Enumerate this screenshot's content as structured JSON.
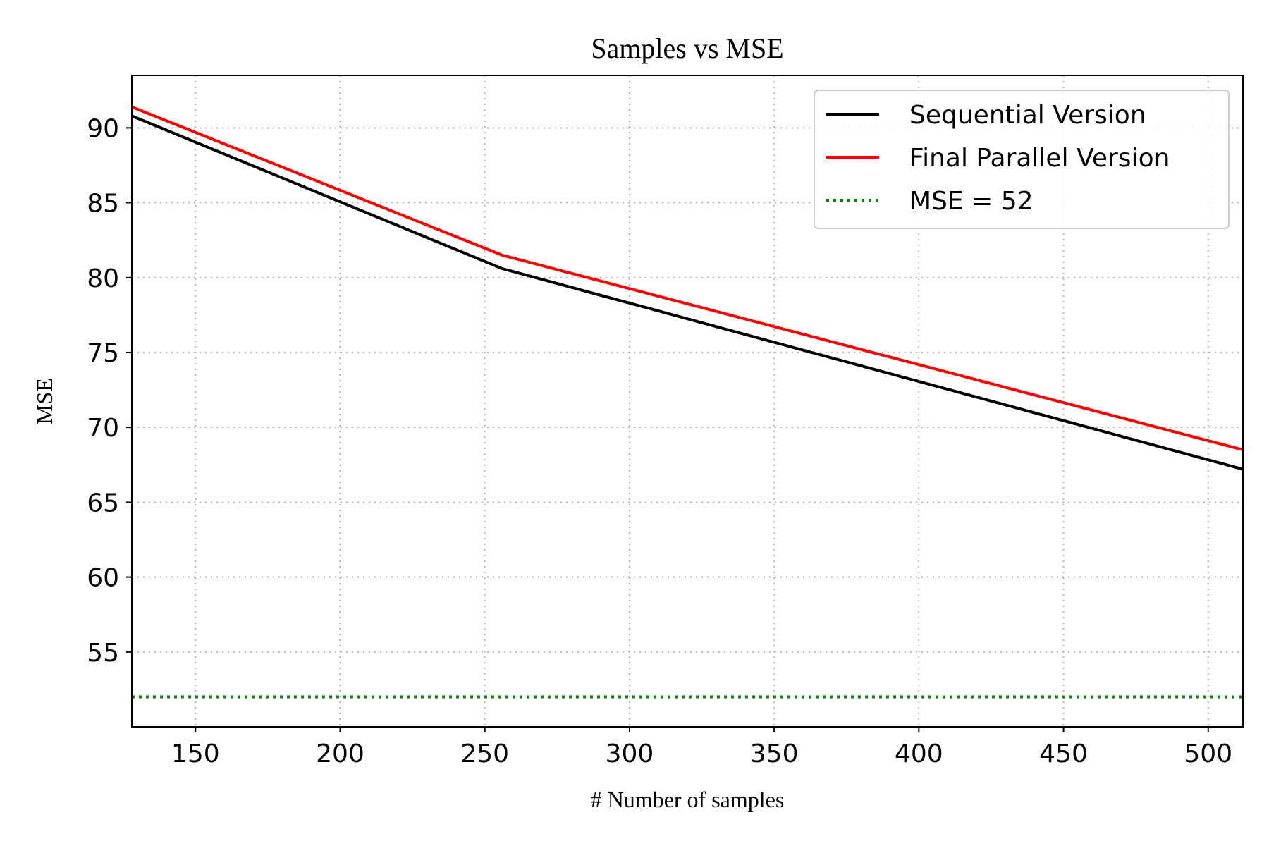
{
  "chart_data": {
    "type": "line",
    "title": "Samples vs MSE",
    "xlabel": "# Number of samples",
    "ylabel": "MSE",
    "xlim": [
      128,
      512
    ],
    "ylim": [
      50,
      93.5
    ],
    "xticks": [
      150,
      200,
      250,
      300,
      350,
      400,
      450,
      500
    ],
    "yticks": [
      55,
      60,
      65,
      70,
      75,
      80,
      85,
      90
    ],
    "grid": true,
    "legend_position": "top-right",
    "series": [
      {
        "name": "Sequential Version",
        "color": "#000000",
        "style": "solid",
        "x": [
          128,
          256,
          512
        ],
        "y": [
          90.8,
          80.6,
          67.2
        ]
      },
      {
        "name": "Final Parallel Version",
        "color": "#ff0000",
        "style": "solid",
        "x": [
          128,
          256,
          512
        ],
        "y": [
          91.4,
          81.5,
          68.5
        ]
      },
      {
        "name": "MSE = 52",
        "color": "#008000",
        "style": "dotted",
        "x": [
          128,
          512
        ],
        "y": [
          52,
          52
        ]
      }
    ]
  }
}
